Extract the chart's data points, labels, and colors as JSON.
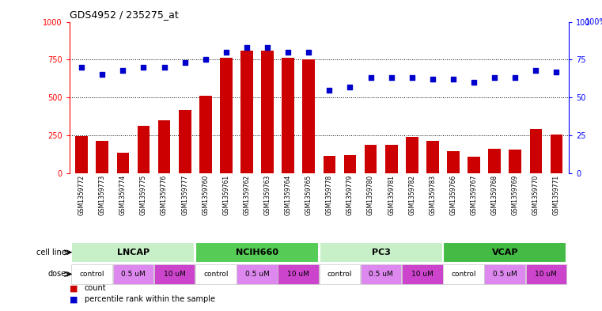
{
  "title": "GDS4952 / 235275_at",
  "samples": [
    "GSM1359772",
    "GSM1359773",
    "GSM1359774",
    "GSM1359775",
    "GSM1359776",
    "GSM1359777",
    "GSM1359760",
    "GSM1359761",
    "GSM1359762",
    "GSM1359763",
    "GSM1359764",
    "GSM1359765",
    "GSM1359778",
    "GSM1359779",
    "GSM1359780",
    "GSM1359781",
    "GSM1359782",
    "GSM1359783",
    "GSM1359766",
    "GSM1359767",
    "GSM1359768",
    "GSM1359769",
    "GSM1359770",
    "GSM1359771"
  ],
  "counts": [
    245,
    215,
    135,
    310,
    350,
    415,
    510,
    760,
    810,
    810,
    760,
    750,
    115,
    120,
    185,
    185,
    240,
    215,
    145,
    110,
    160,
    155,
    290,
    255
  ],
  "percentiles": [
    70,
    65,
    68,
    70,
    70,
    73,
    75,
    80,
    83,
    83,
    80,
    80,
    55,
    57,
    63,
    63,
    63,
    62,
    62,
    60,
    63,
    63,
    68,
    67
  ],
  "cell_lines": [
    {
      "label": "LNCAP",
      "start": 0,
      "end": 6,
      "color": "#c8f0c8"
    },
    {
      "label": "NCIH660",
      "start": 6,
      "end": 12,
      "color": "#55cc55"
    },
    {
      "label": "PC3",
      "start": 12,
      "end": 18,
      "color": "#c8f0c8"
    },
    {
      "label": "VCAP",
      "start": 18,
      "end": 24,
      "color": "#44bb44"
    }
  ],
  "dose_groups": [
    {
      "label": "control",
      "color": "#ffffff"
    },
    {
      "label": "0.5 uM",
      "color": "#dd88ee"
    },
    {
      "label": "10 uM",
      "color": "#dd88ee"
    }
  ],
  "bar_color": "#cc0000",
  "dot_color": "#0000cc",
  "ylim_left": [
    0,
    1000
  ],
  "ylim_right": [
    0,
    100
  ],
  "yticks_left": [
    0,
    250,
    500,
    750,
    1000
  ],
  "yticks_right": [
    0,
    25,
    50,
    75,
    100
  ],
  "bg_color": "#ffffff",
  "plot_bg": "#ffffff",
  "label_row_bg": "#d8d8d8",
  "cell_line_divider_color": "#aaaaaa"
}
